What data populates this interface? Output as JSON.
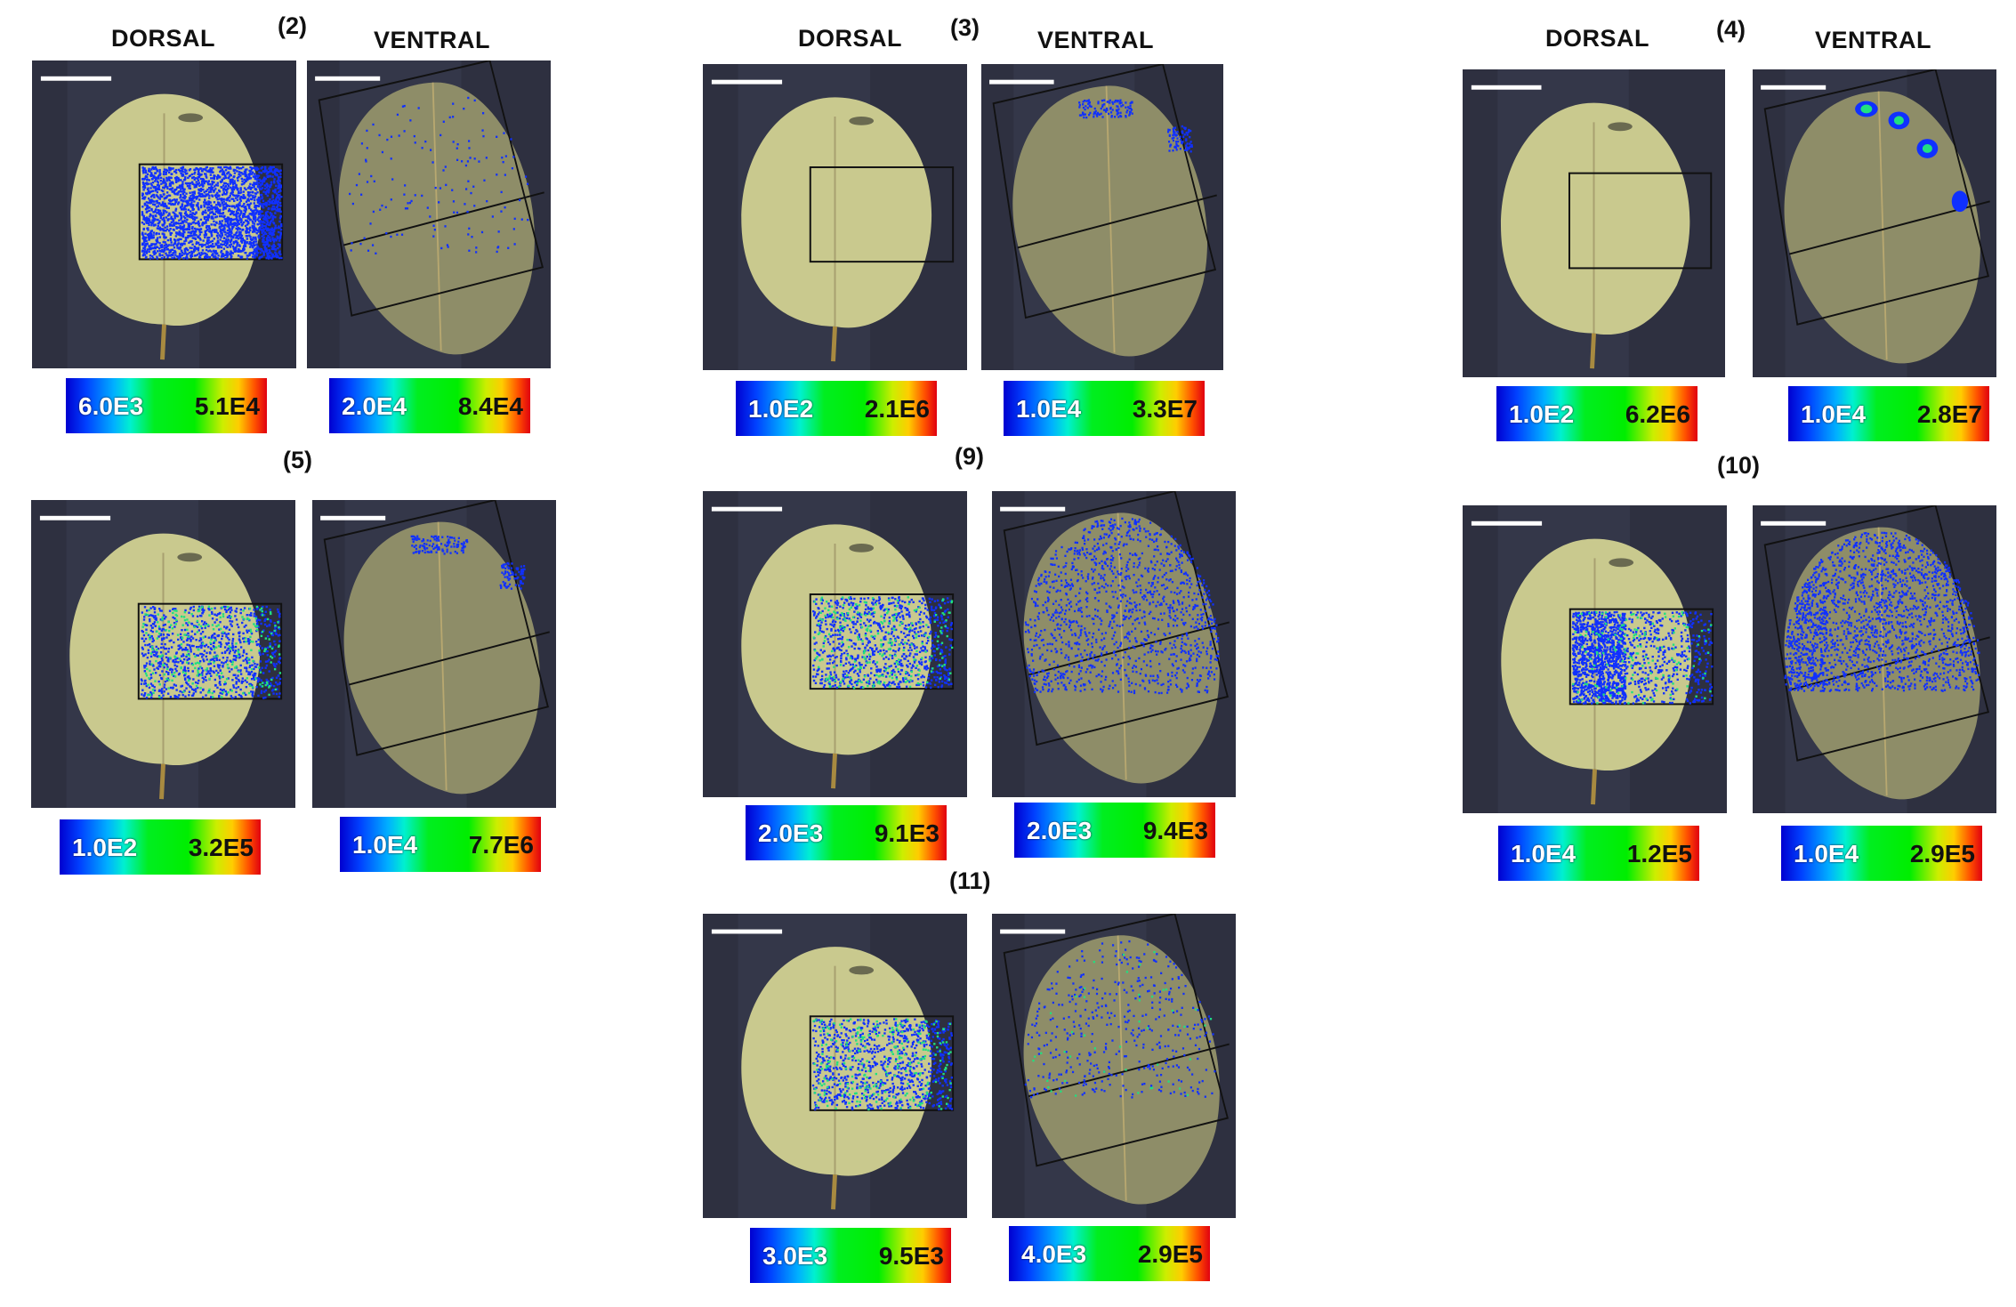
{
  "headers": {
    "dorsal": "DORSAL",
    "ventral": "VENTRAL"
  },
  "groups": [
    {
      "label": "(2)",
      "dorsal_scale": {
        "low": "6.0E3",
        "high": "5.1E4"
      },
      "ventral_scale": {
        "low": "2.0E4",
        "high": "8.4E4"
      }
    },
    {
      "label": "(3)",
      "dorsal_scale": {
        "low": "1.0E2",
        "high": "2.1E6"
      },
      "ventral_scale": {
        "low": "1.0E4",
        "high": "3.3E7"
      }
    },
    {
      "label": "(4)",
      "dorsal_scale": {
        "low": "1.0E2",
        "high": "6.2E6"
      },
      "ventral_scale": {
        "low": "1.0E4",
        "high": "2.8E7"
      }
    },
    {
      "label": "(5)",
      "dorsal_scale": {
        "low": "1.0E2",
        "high": "3.2E5"
      },
      "ventral_scale": {
        "low": "1.0E4",
        "high": "7.7E6"
      }
    },
    {
      "label": "(9)",
      "dorsal_scale": {
        "low": "2.0E3",
        "high": "9.1E3"
      },
      "ventral_scale": {
        "low": "2.0E3",
        "high": "9.4E3"
      }
    },
    {
      "label": "(10)",
      "dorsal_scale": {
        "low": "1.0E4",
        "high": "1.2E5"
      },
      "ventral_scale": {
        "low": "1.0E4",
        "high": "2.9E5"
      }
    },
    {
      "label": "(11)",
      "dorsal_scale": {
        "low": "3.0E3",
        "high": "9.5E3"
      },
      "ventral_scale": {
        "low": "4.0E3",
        "high": "2.9E5"
      }
    }
  ],
  "colors": {
    "panel_background": "#2e3040",
    "leaf": "#c9c98e",
    "signal_blue": "#1030ff",
    "signal_green": "#20e080"
  }
}
